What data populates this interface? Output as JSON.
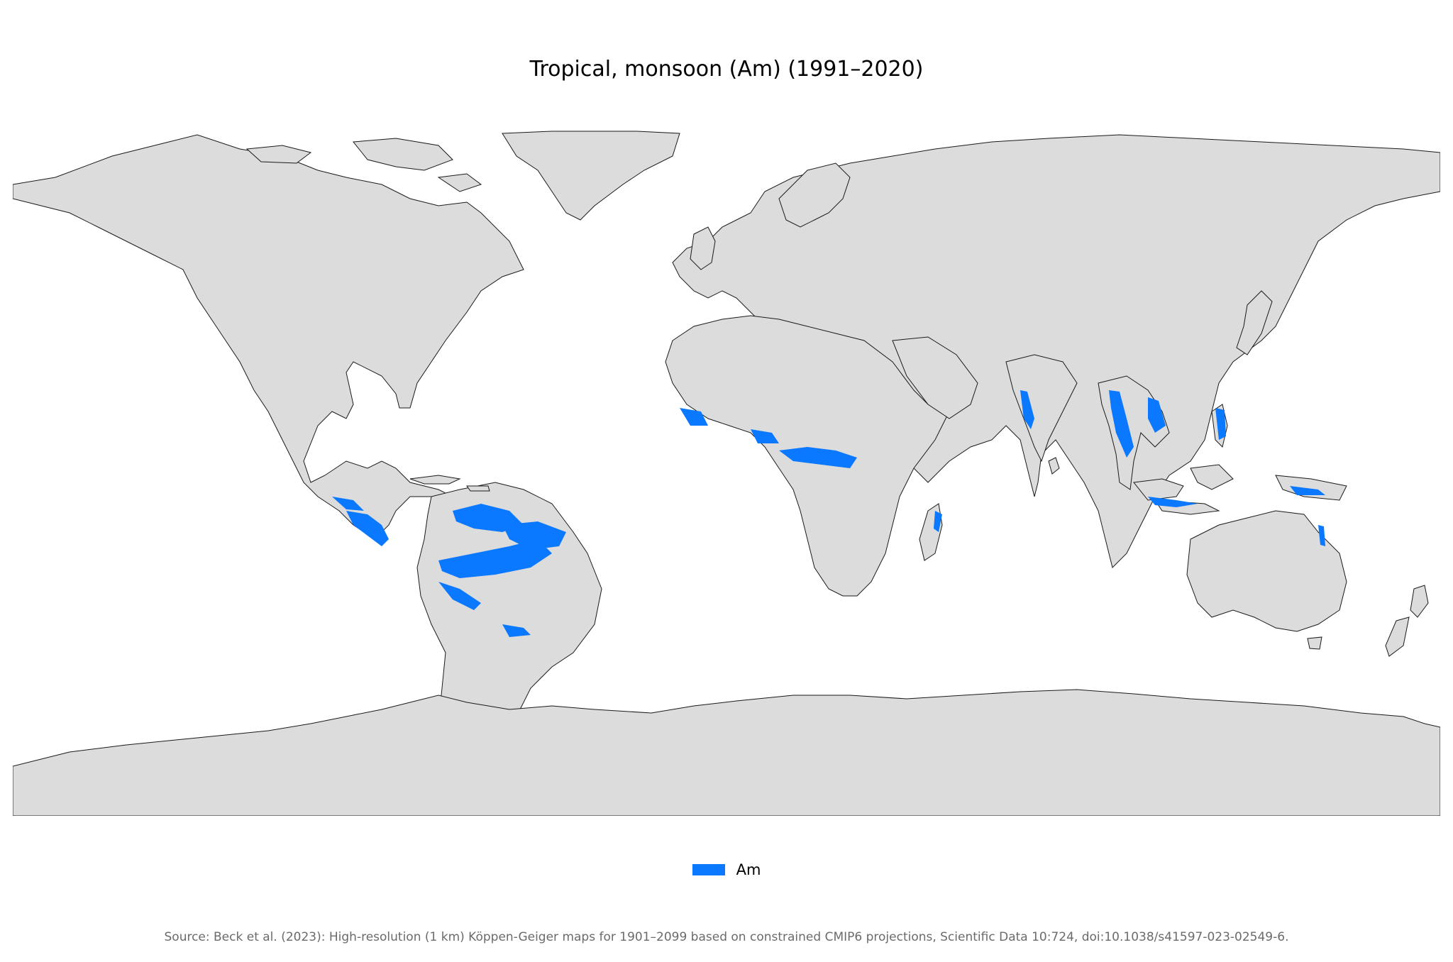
{
  "title": "Tropical, monsoon (Am) (1991–2020)",
  "legend": {
    "label": "Am"
  },
  "source": "Source: Beck et al. (2023): High-resolution (1 km) Köppen-Geiger maps for 1901–2099 based on constrained CMIP6 projections, Scientific Data 10:724, doi:10.1038/s41597-023-02549-6.",
  "colors": {
    "land": "#dcdcdc",
    "border": "#1a1a1a",
    "climate_zone": "#0a78ff",
    "background": "#ffffff",
    "source_text": "#6b6b6b"
  },
  "map": {
    "projection": "equirectangular",
    "extent": "world",
    "highlighted_class": "Am"
  }
}
